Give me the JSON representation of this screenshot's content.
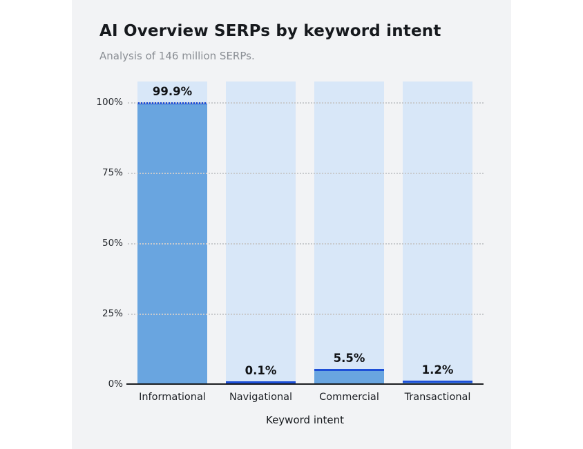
{
  "header": {
    "title": "AI Overview SERPs by keyword intent",
    "subtitle": "Analysis of 146 million SERPs."
  },
  "chart_data": {
    "type": "bar",
    "title": "AI Overview SERPs by keyword intent",
    "subtitle": "Analysis of 146 million SERPs.",
    "categories": [
      "Informational",
      "Navigational",
      "Commercial",
      "Transactional"
    ],
    "values": [
      99.9,
      0.1,
      5.5,
      1.2
    ],
    "value_labels": [
      "99.9%",
      "0.1%",
      "5.5%",
      "1.2%"
    ],
    "xlabel": "Keyword intent",
    "ylabel": "",
    "ylim": [
      0,
      100
    ],
    "y_ticks": [
      "100%",
      "75%",
      "50%",
      "25%",
      "0%"
    ],
    "y_tick_values": [
      100,
      75,
      50,
      25,
      0
    ],
    "grid": "horizontal-dotted",
    "legend": "none",
    "track_bars_to": 107.3
  },
  "colors": {
    "card_bg": "#F2F3F5",
    "page_bg": "#FFFFFF",
    "bar_fill": "#69A5E0",
    "bar_track": "#D8E7F8",
    "bar_edge": "#1D4FD7",
    "axis": "#1A1C1F",
    "grid": "#C8CACD",
    "title": "#16191D",
    "subtitle": "#8A8E94",
    "tick_label": "#26292E",
    "category_label": "#1D2025",
    "value_label": "#101215"
  }
}
